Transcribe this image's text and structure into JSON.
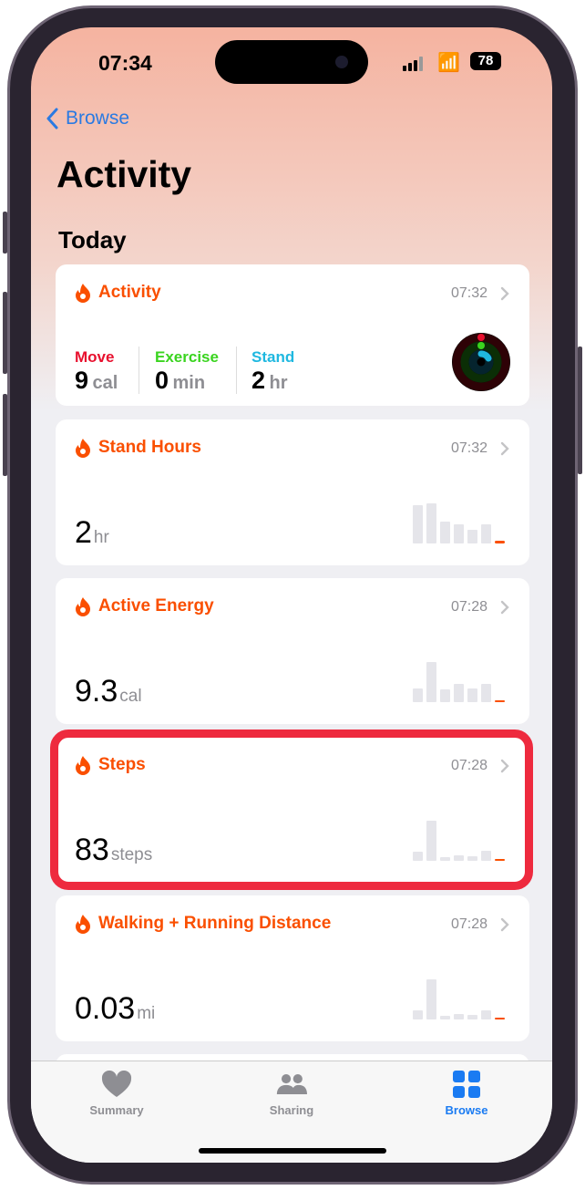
{
  "status": {
    "time": "07:34",
    "battery": "78"
  },
  "nav": {
    "back_label": "Browse",
    "title": "Activity",
    "section": "Today"
  },
  "colors": {
    "accent": "#fa4f00",
    "move": "#e8102e",
    "exercise": "#3ad41f",
    "stand": "#1fb8e0",
    "highlight": "#ee2a3e",
    "tint": "#1a7bf2"
  },
  "activity_card": {
    "title": "Activity",
    "time": "07:32",
    "icon": "flame-icon",
    "move": {
      "label": "Move",
      "value": "9",
      "unit": "cal"
    },
    "exercise": {
      "label": "Exercise",
      "value": "0",
      "unit": "min"
    },
    "stand": {
      "label": "Stand",
      "value": "2",
      "unit": "hr"
    }
  },
  "cards": [
    {
      "title": "Stand Hours",
      "time": "07:32",
      "value": "2",
      "unit": "hr",
      "trend": [
        0.95,
        1,
        0.55,
        0.48,
        0.33,
        0.48,
        0.07
      ]
    },
    {
      "title": "Active Energy",
      "time": "07:28",
      "value": "9.3",
      "unit": "cal",
      "trend": [
        0.35,
        1,
        0.31,
        0.45,
        0.33,
        0.45,
        0
      ]
    },
    {
      "title": "Steps",
      "time": "07:28",
      "value": "83",
      "unit": "steps",
      "trend": [
        0.22,
        1,
        0.1,
        0.14,
        0.12,
        0.24,
        0
      ],
      "highlighted": true
    },
    {
      "title": "Walking + Running Distance",
      "time": "07:28",
      "value": "0.03",
      "unit": "mi",
      "trend": [
        0.22,
        1,
        0.1,
        0.14,
        0.12,
        0.22,
        0
      ]
    }
  ],
  "tabs": [
    {
      "label": "Summary",
      "icon": "heart-icon"
    },
    {
      "label": "Sharing",
      "icon": "people-icon"
    },
    {
      "label": "Browse",
      "icon": "grid-icon",
      "active": true
    }
  ]
}
